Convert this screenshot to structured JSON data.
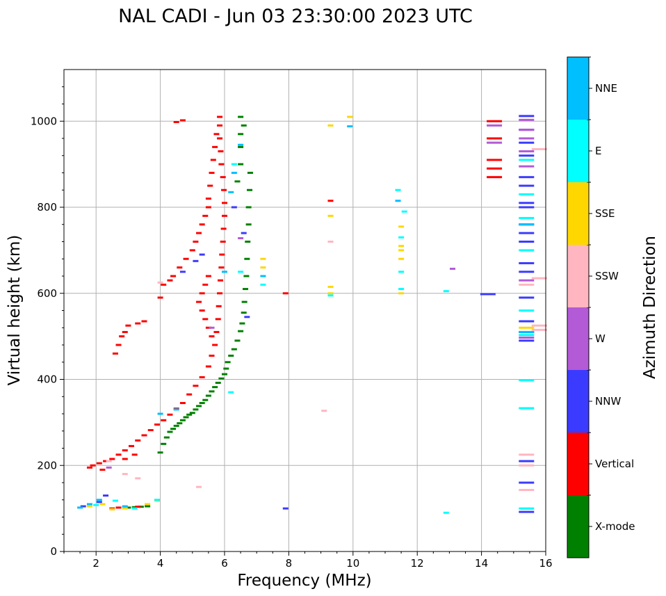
{
  "chart_data": {
    "type": "scatter",
    "title": "NAL CADI - Jun 03 23:30:00 2023 UTC",
    "xlabel": "Frequency (MHz)",
    "ylabel": "Virtual height (km)",
    "xlim": [
      1,
      16
    ],
    "ylim": [
      0,
      1120
    ],
    "xticks": [
      2,
      4,
      6,
      8,
      10,
      12,
      14,
      16
    ],
    "yticks": [
      0,
      200,
      400,
      600,
      800,
      1000
    ],
    "grid": true,
    "colorbar": {
      "label": "Azimuth Direction",
      "categories": [
        {
          "name": "X-mode",
          "color": "#008000"
        },
        {
          "name": "Vertical",
          "color": "#ff0000"
        },
        {
          "name": "NNW",
          "color": "#3b3bff"
        },
        {
          "name": "W",
          "color": "#b35ad6"
        },
        {
          "name": "SSW",
          "color": "#ffb6c1"
        },
        {
          "name": "SSE",
          "color": "#ffd700"
        },
        {
          "name": "E",
          "color": "#00ffff"
        },
        {
          "name": "NNE",
          "color": "#00bfff"
        }
      ]
    },
    "series": [
      {
        "name": "X-mode",
        "points": [
          [
            3.0,
            102
          ],
          [
            3.2,
            103
          ],
          [
            3.4,
            104
          ],
          [
            3.6,
            105
          ],
          [
            4.0,
            230
          ],
          [
            4.1,
            250
          ],
          [
            4.2,
            265
          ],
          [
            4.3,
            278
          ],
          [
            4.4,
            285
          ],
          [
            4.5,
            292
          ],
          [
            4.6,
            298
          ],
          [
            4.7,
            305
          ],
          [
            4.8,
            312
          ],
          [
            4.9,
            318
          ],
          [
            5.0,
            322
          ],
          [
            5.1,
            330
          ],
          [
            5.2,
            338
          ],
          [
            5.3,
            345
          ],
          [
            5.4,
            352
          ],
          [
            5.5,
            362
          ],
          [
            5.6,
            372
          ],
          [
            5.7,
            382
          ],
          [
            5.8,
            392
          ],
          [
            5.9,
            402
          ],
          [
            6.0,
            412
          ],
          [
            6.05,
            425
          ],
          [
            6.1,
            440
          ],
          [
            6.2,
            455
          ],
          [
            6.3,
            470
          ],
          [
            6.4,
            490
          ],
          [
            6.5,
            512
          ],
          [
            6.55,
            530
          ],
          [
            6.6,
            555
          ],
          [
            6.62,
            580
          ],
          [
            6.65,
            610
          ],
          [
            6.68,
            640
          ],
          [
            6.7,
            680
          ],
          [
            6.72,
            720
          ],
          [
            6.75,
            760
          ],
          [
            6.75,
            800
          ],
          [
            6.78,
            840
          ],
          [
            6.8,
            880
          ],
          [
            6.5,
            900
          ],
          [
            6.5,
            940
          ],
          [
            6.5,
            970
          ],
          [
            6.5,
            1010
          ],
          [
            6.6,
            990
          ],
          [
            6.4,
            860
          ]
        ]
      },
      {
        "name": "Vertical",
        "points": [
          [
            1.9,
            200
          ],
          [
            2.1,
            205
          ],
          [
            2.3,
            210
          ],
          [
            2.5,
            215
          ],
          [
            2.7,
            225
          ],
          [
            2.9,
            235
          ],
          [
            3.1,
            245
          ],
          [
            3.3,
            258
          ],
          [
            3.5,
            270
          ],
          [
            3.7,
            282
          ],
          [
            3.9,
            295
          ],
          [
            4.1,
            305
          ],
          [
            4.3,
            318
          ],
          [
            4.5,
            332
          ],
          [
            4.7,
            345
          ],
          [
            4.9,
            365
          ],
          [
            5.1,
            385
          ],
          [
            5.3,
            405
          ],
          [
            5.5,
            430
          ],
          [
            5.6,
            455
          ],
          [
            5.7,
            480
          ],
          [
            5.75,
            510
          ],
          [
            5.8,
            540
          ],
          [
            5.82,
            570
          ],
          [
            5.85,
            600
          ],
          [
            5.87,
            630
          ],
          [
            5.9,
            660
          ],
          [
            5.92,
            690
          ],
          [
            5.95,
            720
          ],
          [
            5.97,
            750
          ],
          [
            6.0,
            780
          ],
          [
            6.0,
            810
          ],
          [
            5.98,
            840
          ],
          [
            5.95,
            870
          ],
          [
            5.9,
            900
          ],
          [
            5.88,
            930
          ],
          [
            5.85,
            960
          ],
          [
            5.85,
            990
          ],
          [
            5.85,
            1010
          ],
          [
            2.6,
            460
          ],
          [
            2.7,
            480
          ],
          [
            2.8,
            500
          ],
          [
            2.9,
            510
          ],
          [
            3.0,
            525
          ],
          [
            3.3,
            530
          ],
          [
            3.5,
            535
          ],
          [
            4.0,
            590
          ],
          [
            4.1,
            620
          ],
          [
            4.3,
            630
          ],
          [
            4.4,
            640
          ],
          [
            4.6,
            660
          ],
          [
            4.8,
            680
          ],
          [
            5.0,
            700
          ],
          [
            5.1,
            720
          ],
          [
            5.2,
            740
          ],
          [
            5.3,
            760
          ],
          [
            5.4,
            780
          ],
          [
            5.5,
            800
          ],
          [
            5.5,
            820
          ],
          [
            5.55,
            850
          ],
          [
            5.6,
            880
          ],
          [
            5.65,
            910
          ],
          [
            5.7,
            940
          ],
          [
            5.75,
            970
          ],
          [
            4.5,
            998
          ],
          [
            4.7,
            1002
          ],
          [
            5.6,
            500
          ],
          [
            5.5,
            520
          ],
          [
            5.4,
            540
          ],
          [
            5.3,
            560
          ],
          [
            5.2,
            580
          ],
          [
            5.3,
            600
          ],
          [
            5.4,
            620
          ],
          [
            5.5,
            640
          ],
          [
            2.5,
            100
          ],
          [
            2.7,
            102
          ],
          [
            2.9,
            103
          ],
          [
            3.3,
            104
          ],
          [
            1.8,
            195
          ],
          [
            2.2,
            190
          ],
          [
            2.9,
            215
          ],
          [
            3.2,
            225
          ],
          [
            7.9,
            600
          ],
          [
            9.3,
            815
          ],
          [
            14.4,
            870
          ],
          [
            14.4,
            890
          ],
          [
            14.4,
            910
          ],
          [
            14.4,
            960
          ],
          [
            14.4,
            1000
          ]
        ]
      },
      {
        "name": "NNW",
        "points": [
          [
            1.6,
            105
          ],
          [
            2.1,
            115
          ],
          [
            2.3,
            130
          ],
          [
            4.7,
            650
          ],
          [
            5.1,
            675
          ],
          [
            5.3,
            690
          ],
          [
            6.3,
            800
          ],
          [
            6.6,
            740
          ],
          [
            6.7,
            545
          ],
          [
            7.9,
            100
          ],
          [
            14.2,
            598
          ],
          [
            15.4,
            92
          ],
          [
            15.4,
            160
          ],
          [
            15.4,
            210
          ],
          [
            15.4,
            490
          ],
          [
            15.4,
            510
          ],
          [
            15.4,
            535
          ],
          [
            15.4,
            590
          ],
          [
            15.4,
            650
          ],
          [
            15.4,
            670
          ],
          [
            15.4,
            720
          ],
          [
            15.4,
            740
          ],
          [
            15.4,
            760
          ],
          [
            15.4,
            800
          ],
          [
            15.4,
            810
          ],
          [
            15.4,
            850
          ],
          [
            15.4,
            870
          ],
          [
            15.4,
            920
          ],
          [
            15.4,
            950
          ],
          [
            15.4,
            980
          ],
          [
            15.4,
            1012
          ]
        ]
      },
      {
        "name": "W",
        "points": [
          [
            2.4,
            195
          ],
          [
            5.6,
            520
          ],
          [
            6.5,
            728
          ],
          [
            13.1,
            657
          ],
          [
            15.4,
            497
          ],
          [
            15.4,
            630
          ],
          [
            15.4,
            895
          ],
          [
            15.4,
            930
          ],
          [
            15.4,
            960
          ],
          [
            15.4,
            980
          ],
          [
            15.4,
            1003
          ],
          [
            14.4,
            950
          ],
          [
            14.4,
            990
          ]
        ]
      },
      {
        "name": "SSW",
        "points": [
          [
            2.4,
            210
          ],
          [
            2.9,
            180
          ],
          [
            3.3,
            170
          ],
          [
            4.0,
            625
          ],
          [
            5.2,
            150
          ],
          [
            9.1,
            327
          ],
          [
            9.3,
            720
          ],
          [
            15.4,
            143
          ],
          [
            15.4,
            200
          ],
          [
            15.4,
            225
          ],
          [
            15.4,
            620
          ],
          [
            15.8,
            515
          ],
          [
            15.8,
            525
          ],
          [
            15.8,
            635
          ],
          [
            15.8,
            935
          ]
        ]
      },
      {
        "name": "SSE",
        "points": [
          [
            1.8,
            105
          ],
          [
            2.2,
            110
          ],
          [
            2.5,
            98
          ],
          [
            2.9,
            100
          ],
          [
            3.6,
            110
          ],
          [
            3.9,
            118
          ],
          [
            7.2,
            660
          ],
          [
            7.2,
            680
          ],
          [
            9.3,
            600
          ],
          [
            9.3,
            615
          ],
          [
            9.3,
            780
          ],
          [
            9.3,
            990
          ],
          [
            9.9,
            1010
          ],
          [
            11.5,
            600
          ],
          [
            11.5,
            680
          ],
          [
            11.5,
            700
          ],
          [
            11.5,
            710
          ],
          [
            11.5,
            755
          ],
          [
            15.4,
            520
          ]
        ]
      },
      {
        "name": "E",
        "points": [
          [
            2.0,
            108
          ],
          [
            2.6,
            118
          ],
          [
            3.2,
            100
          ],
          [
            3.9,
            120
          ],
          [
            6.2,
            370
          ],
          [
            6.3,
            900
          ],
          [
            6.5,
            650
          ],
          [
            7.2,
            620
          ],
          [
            9.3,
            595
          ],
          [
            11.4,
            840
          ],
          [
            11.5,
            610
          ],
          [
            11.5,
            650
          ],
          [
            11.5,
            730
          ],
          [
            11.6,
            790
          ],
          [
            12.9,
            90
          ],
          [
            12.9,
            605
          ],
          [
            15.4,
            100
          ],
          [
            15.4,
            333
          ],
          [
            15.4,
            398
          ],
          [
            15.4,
            503
          ],
          [
            15.4,
            560
          ],
          [
            15.4,
            700
          ],
          [
            15.4,
            775
          ],
          [
            15.4,
            830
          ],
          [
            15.4,
            910
          ]
        ]
      },
      {
        "name": "NNE",
        "points": [
          [
            1.5,
            102
          ],
          [
            1.8,
            110
          ],
          [
            2.1,
            120
          ],
          [
            2.9,
            105
          ],
          [
            4.0,
            320
          ],
          [
            4.5,
            330
          ],
          [
            6.0,
            650
          ],
          [
            6.2,
            835
          ],
          [
            6.5,
            945
          ],
          [
            6.3,
            880
          ],
          [
            7.2,
            640
          ],
          [
            9.9,
            988
          ],
          [
            11.4,
            815
          ],
          [
            15.4,
            510
          ],
          [
            15.4,
            760
          ]
        ]
      }
    ]
  }
}
